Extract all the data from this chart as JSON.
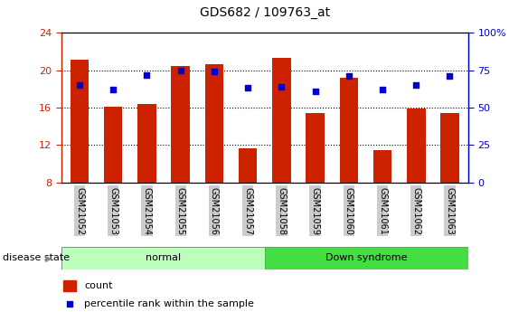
{
  "title": "GDS682 / 109763_at",
  "samples": [
    "GSM21052",
    "GSM21053",
    "GSM21054",
    "GSM21055",
    "GSM21056",
    "GSM21057",
    "GSM21058",
    "GSM21059",
    "GSM21060",
    "GSM21061",
    "GSM21062",
    "GSM21063"
  ],
  "count_values": [
    21.1,
    16.1,
    16.4,
    20.4,
    20.6,
    11.7,
    21.3,
    15.4,
    19.2,
    11.5,
    15.9,
    15.4
  ],
  "percentile_values": [
    65,
    62,
    72,
    75,
    74,
    63,
    64,
    61,
    71,
    62,
    65,
    71
  ],
  "bar_color": "#cc2200",
  "dot_color": "#0000cc",
  "ylim_left": [
    8,
    24
  ],
  "ylim_right": [
    0,
    100
  ],
  "yticks_left": [
    8,
    12,
    16,
    20,
    24
  ],
  "yticks_right": [
    0,
    25,
    50,
    75,
    100
  ],
  "yticklabels_right": [
    "0",
    "25",
    "50",
    "75",
    "100%"
  ],
  "normal_color": "#bbffbb",
  "down_color": "#44dd44",
  "bar_color_left": "#cc2200",
  "bar_color_right": "#0000cc",
  "disease_state_label": "disease state",
  "normal_label": "normal",
  "down_label": "Down syndrome",
  "legend_count": "count",
  "legend_percentile": "percentile rank within the sample",
  "tick_bg_color": "#cccccc",
  "plot_bg_color": "#ffffff",
  "grid_color": "#000000",
  "border_color": "#000000"
}
